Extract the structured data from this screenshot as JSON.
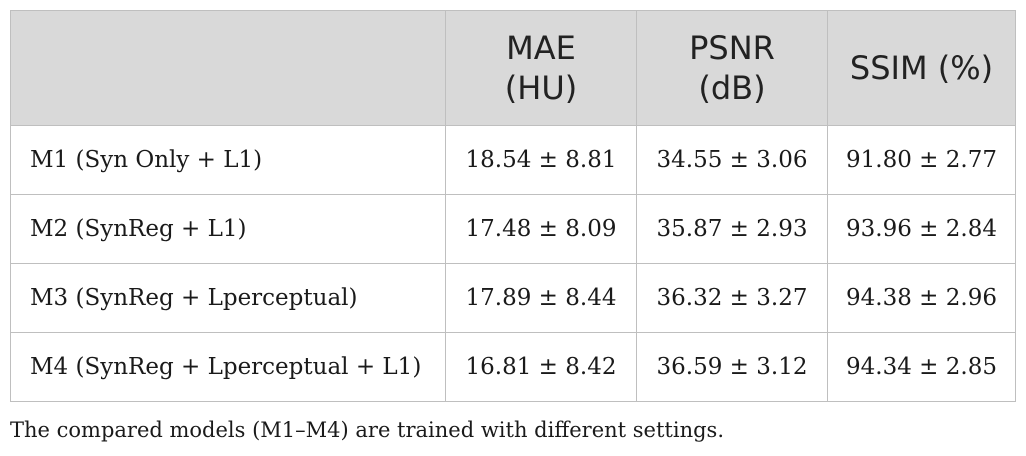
{
  "table": {
    "columns": [
      {
        "line1": "",
        "line2": ""
      },
      {
        "line1": "MAE",
        "line2": "(HU)"
      },
      {
        "line1": "PSNR",
        "line2": "(dB)"
      },
      {
        "line1": "SSIM (%)",
        "line2": ""
      }
    ],
    "rows": [
      {
        "model": "M1 (Syn Only + L1)",
        "mae": "18.54 ± 8.81",
        "psnr": "34.55 ± 3.06",
        "ssim": "91.80 ± 2.77"
      },
      {
        "model": "M2 (SynReg + L1)",
        "mae": "17.48 ± 8.09",
        "psnr": "35.87 ± 2.93",
        "ssim": "93.96 ± 2.84"
      },
      {
        "model": "M3 (SynReg + Lperceptual)",
        "mae": "17.89 ± 8.44",
        "psnr": "36.32 ± 3.27",
        "ssim": "94.38 ± 2.96"
      },
      {
        "model": "M4 (SynReg + Lperceptual + L1)",
        "mae": "16.81 ± 8.42",
        "psnr": "36.59 ± 3.12",
        "ssim": "94.34 ± 2.85"
      }
    ]
  },
  "footnote": "The compared models (M1–M4) are trained with different settings."
}
